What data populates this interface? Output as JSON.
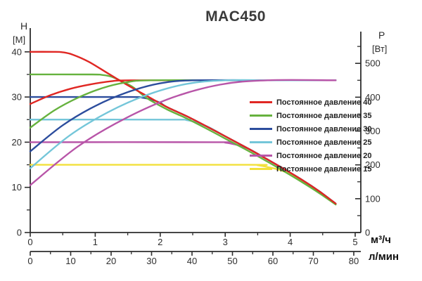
{
  "title": "MAC450",
  "axes": {
    "left": {
      "label": "H",
      "unit": "[M]"
    },
    "right": {
      "label": "P",
      "unit": "[Вт]"
    },
    "bottom_primary_unit": "м³/ч",
    "bottom_secondary_unit": "л/мин"
  },
  "legend": {
    "items": [
      {
        "label": "Постоянное давление 40",
        "color": "#e02723"
      },
      {
        "label": "Постоянное давление 35",
        "color": "#66b23e"
      },
      {
        "label": "Постоянное давление 30",
        "color": "#2c4d9d"
      },
      {
        "label": "Постоянное давление 25",
        "color": "#74c6d9"
      },
      {
        "label": "Постоянное давление 20",
        "color": "#b855a8"
      },
      {
        "label": "Постоянное давление 15",
        "color": "#f2e03a"
      }
    ]
  },
  "chart_data": {
    "type": "line",
    "title": "MAC450",
    "x_axis": {
      "label": "м³/ч",
      "range": [
        0,
        5
      ],
      "ticks": [
        0,
        1,
        2,
        3,
        4,
        5
      ],
      "minor_step": 0.5
    },
    "x_axis_secondary": {
      "label": "л/мин",
      "range": [
        0,
        83
      ],
      "ticks": [
        0,
        10,
        20,
        30,
        40,
        50,
        60,
        70,
        80
      ],
      "minor_step": 5
    },
    "y_axis_left": {
      "label": "H [M]",
      "range": [
        0,
        45
      ],
      "ticks": [
        0,
        10,
        20,
        30,
        40
      ],
      "minor_ticks": [
        5,
        15,
        25,
        35
      ]
    },
    "y_axis_right": {
      "label": "P [Вт]",
      "range": [
        0,
        590
      ],
      "ticks": [
        0,
        100,
        200,
        300,
        400,
        500
      ],
      "minor_ticks": [
        50,
        150,
        250,
        350,
        450,
        550
      ]
    },
    "grid": false,
    "legend_position": "right-center",
    "series": [
      {
        "name": "head-40",
        "legend": "Постоянное давление 40",
        "color": "#e02723",
        "axis": "left",
        "points": [
          [
            0,
            40
          ],
          [
            0.35,
            40
          ],
          [
            0.5,
            39.9
          ],
          [
            0.65,
            39.4
          ],
          [
            0.9,
            37.8
          ],
          [
            1.2,
            35.2
          ],
          [
            1.5,
            32.6
          ],
          [
            1.8,
            30.2
          ],
          [
            2.1,
            27.8
          ],
          [
            2.4,
            25.8
          ],
          [
            2.7,
            23.6
          ],
          [
            3.0,
            21.3
          ],
          [
            3.3,
            19.0
          ],
          [
            3.6,
            16.6
          ],
          [
            3.9,
            14.1
          ],
          [
            4.2,
            11.5
          ],
          [
            4.45,
            9.1
          ],
          [
            4.7,
            6.4
          ]
        ]
      },
      {
        "name": "head-35",
        "legend": "Постоянное давление 35",
        "color": "#66b23e",
        "axis": "left",
        "points": [
          [
            0,
            35
          ],
          [
            0.95,
            35
          ],
          [
            1.1,
            34.9
          ],
          [
            1.25,
            34.5
          ],
          [
            1.45,
            33.2
          ],
          [
            1.6,
            32.0
          ],
          [
            1.8,
            29.7
          ],
          [
            2.1,
            27.3
          ],
          [
            2.4,
            25.3
          ],
          [
            2.7,
            23.1
          ],
          [
            3.0,
            20.8
          ],
          [
            3.3,
            18.5
          ],
          [
            3.6,
            16.1
          ],
          [
            3.9,
            13.6
          ],
          [
            4.2,
            11.0
          ],
          [
            4.45,
            8.7
          ],
          [
            4.7,
            6.2
          ]
        ]
      },
      {
        "name": "head-30",
        "legend": "Постоянное давление 30",
        "color": "#2c4d9d",
        "axis": "left",
        "points": [
          [
            0,
            30
          ],
          [
            1.55,
            30
          ],
          [
            1.7,
            29.9
          ],
          [
            1.85,
            29.5
          ],
          [
            2.0,
            28.7
          ],
          [
            2.1,
            27.8
          ],
          [
            2.4,
            25.8
          ],
          [
            2.7,
            23.6
          ],
          [
            3.0,
            21.3
          ],
          [
            3.3,
            19.0
          ],
          [
            3.6,
            16.6
          ],
          [
            3.9,
            14.1
          ],
          [
            4.2,
            11.5
          ],
          [
            4.45,
            9.1
          ],
          [
            4.7,
            6.4
          ]
        ]
      },
      {
        "name": "head-25",
        "legend": "Постоянное давление 25",
        "color": "#74c6d9",
        "axis": "left",
        "points": [
          [
            0,
            25
          ],
          [
            2.25,
            25
          ],
          [
            2.4,
            24.9
          ],
          [
            2.55,
            24.4
          ],
          [
            2.75,
            23.3
          ],
          [
            3.0,
            21.3
          ],
          [
            3.3,
            19.0
          ],
          [
            3.6,
            16.6
          ],
          [
            3.9,
            14.1
          ],
          [
            4.2,
            11.5
          ],
          [
            4.45,
            9.1
          ],
          [
            4.7,
            6.4
          ]
        ]
      },
      {
        "name": "head-20",
        "legend": "Постоянное давление 20",
        "color": "#b855a8",
        "axis": "left",
        "points": [
          [
            0,
            20
          ],
          [
            2.85,
            20
          ],
          [
            3.0,
            19.9
          ],
          [
            3.15,
            19.5
          ],
          [
            3.35,
            18.6
          ],
          [
            3.6,
            16.6
          ],
          [
            3.9,
            14.1
          ],
          [
            4.2,
            11.5
          ],
          [
            4.45,
            9.1
          ],
          [
            4.7,
            6.4
          ]
        ]
      },
      {
        "name": "head-15",
        "legend": "Постоянное давление 15",
        "color": "#f2e03a",
        "axis": "left",
        "points": [
          [
            0,
            15
          ],
          [
            3.35,
            15
          ],
          [
            3.5,
            14.9
          ],
          [
            3.65,
            14.5
          ],
          [
            3.85,
            13.8
          ],
          [
            4.1,
            12.2
          ],
          [
            4.45,
            9.0
          ],
          [
            4.7,
            6.3
          ]
        ]
      },
      {
        "name": "power-40",
        "legend": "Постоянное давление 40",
        "color": "#e02723",
        "axis": "right",
        "points": [
          [
            0,
            380
          ],
          [
            0.31,
            406
          ],
          [
            0.62,
            425
          ],
          [
            0.93,
            438
          ],
          [
            1.24,
            447
          ],
          [
            1.55,
            450
          ],
          [
            3.0,
            450
          ],
          [
            4.7,
            450
          ]
        ]
      },
      {
        "name": "power-35",
        "legend": "Постоянное давление 35",
        "color": "#66b23e",
        "axis": "right",
        "points": [
          [
            0,
            310
          ],
          [
            0.37,
            361
          ],
          [
            0.74,
            399
          ],
          [
            1.11,
            427
          ],
          [
            1.48,
            444
          ],
          [
            1.85,
            450
          ],
          [
            3.2,
            450
          ],
          [
            4.7,
            450
          ]
        ]
      },
      {
        "name": "power-30",
        "legend": "Постоянное давление 30",
        "color": "#2c4d9d",
        "axis": "right",
        "points": [
          [
            0,
            240
          ],
          [
            0.5,
            317
          ],
          [
            1.0,
            374
          ],
          [
            1.5,
            415
          ],
          [
            2.0,
            441
          ],
          [
            2.5,
            450
          ],
          [
            3.5,
            450
          ],
          [
            4.7,
            450
          ]
        ]
      },
      {
        "name": "power-25",
        "legend": "Постоянное давление 25",
        "color": "#74c6d9",
        "axis": "right",
        "points": [
          [
            0,
            190
          ],
          [
            0.6,
            286
          ],
          [
            1.2,
            356
          ],
          [
            1.8,
            407
          ],
          [
            2.4,
            439
          ],
          [
            3.0,
            450
          ],
          [
            3.8,
            450
          ],
          [
            4.7,
            450
          ]
        ]
      },
      {
        "name": "power-20",
        "legend": "Постоянное давление 20",
        "color": "#b855a8",
        "axis": "right",
        "points": [
          [
            0,
            140
          ],
          [
            0.73,
            254
          ],
          [
            1.46,
            337
          ],
          [
            2.19,
            399
          ],
          [
            2.92,
            437
          ],
          [
            3.65,
            450
          ],
          [
            4.7,
            450
          ]
        ]
      }
    ]
  }
}
